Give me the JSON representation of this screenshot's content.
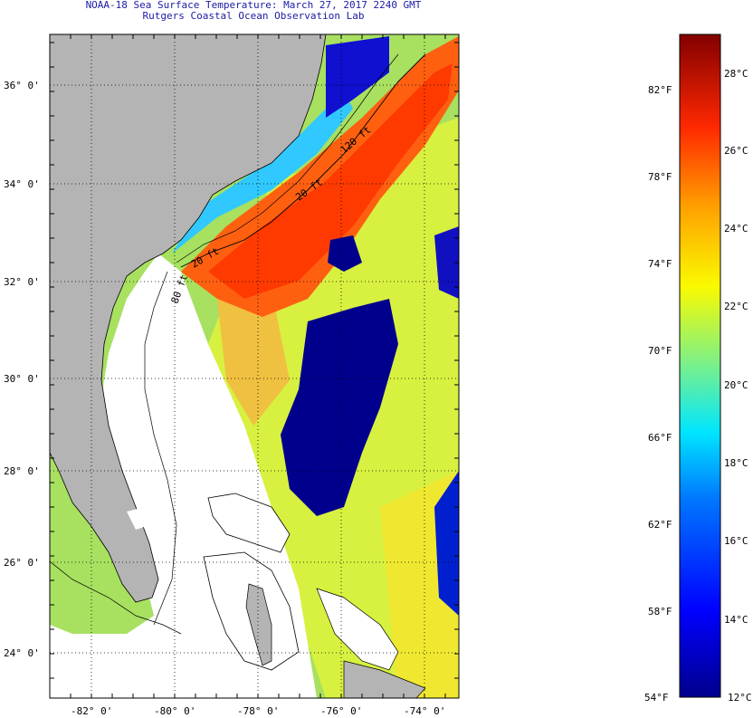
{
  "header": {
    "title": "NOAA-18 Sea Surface Temperature:  March 27, 2017 2240 GMT",
    "subtitle": "Rutgers Coastal Ocean Observation Lab"
  },
  "map": {
    "lat_labels": [
      "36° 0'",
      "34° 0'",
      "32° 0'",
      "30° 0'",
      "28° 0'",
      "26° 0'",
      "24° 0'"
    ],
    "lon_labels": [
      "-82° 0'",
      "-80° 0'",
      "-78° 0'",
      "-76° 0'",
      "-74° 0'"
    ],
    "contour_labels": [
      "20 ft",
      "20 ft",
      "80 ft",
      "120 ft"
    ],
    "colors": {
      "land": "#b4b4b4",
      "nodata": "#ffffff",
      "cold": "#00008c",
      "warm": "#ff4000"
    }
  },
  "colorbar": {
    "fahrenheit_labels": [
      "82°F",
      "78°F",
      "74°F",
      "70°F",
      "66°F",
      "62°F",
      "58°F",
      "54°F"
    ],
    "celsius_labels": [
      "28°C",
      "26°C",
      "24°C",
      "22°C",
      "20°C",
      "18°C",
      "16°C",
      "14°C",
      "12°C"
    ]
  }
}
